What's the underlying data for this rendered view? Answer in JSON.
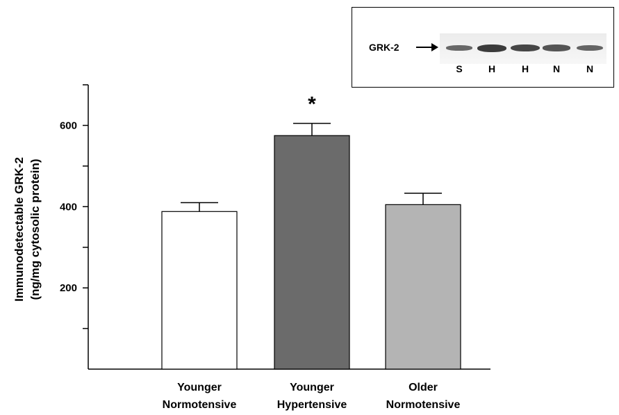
{
  "chart_data": {
    "type": "bar",
    "categories": [
      [
        "Younger",
        "Normotensive"
      ],
      [
        "Younger",
        "Hypertensive"
      ],
      [
        "Older",
        "Normotensive"
      ]
    ],
    "values": [
      388,
      575,
      405
    ],
    "errors": [
      22,
      30,
      28
    ],
    "bar_colors": [
      "#ffffff",
      "#6b6b6b",
      "#b4b4b4"
    ],
    "significance": [
      "",
      "*",
      ""
    ],
    "ylabel": [
      "Immunodetectable GRK-2",
      "(ng/mg cytosolic protein)"
    ],
    "xlabel": "",
    "ylim": [
      0,
      700
    ],
    "yticks": [
      200,
      400,
      600
    ],
    "yticks_minor": [
      100,
      300,
      500,
      700
    ],
    "grid": false,
    "legend": "none"
  },
  "inset": {
    "label": "GRK-2",
    "lanes": [
      "S",
      "H",
      "H",
      "N",
      "N"
    ],
    "band_intensity": [
      0.55,
      1.0,
      0.9,
      0.75,
      0.6
    ]
  }
}
